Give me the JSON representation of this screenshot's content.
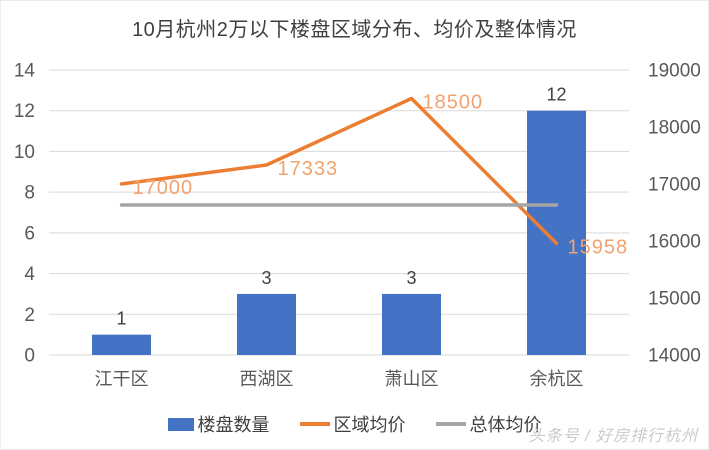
{
  "chart_data": {
    "type": "bar",
    "title": "10月杭州2万以下楼盘区域分布、均价及整体情况",
    "categories": [
      "江干区",
      "西湖区",
      "萧山区",
      "余杭区"
    ],
    "series": [
      {
        "key": "listing-count",
        "name": "楼盘数量",
        "type": "bar",
        "axis": "left",
        "values": [
          1,
          3,
          3,
          12
        ],
        "labels": [
          "1",
          "3",
          "3",
          "12"
        ],
        "color": "#4472C4"
      },
      {
        "key": "region-avg-price",
        "name": "区域均价",
        "type": "line",
        "axis": "right",
        "values": [
          17000,
          17333,
          18500,
          15958
        ],
        "labels": [
          "17000",
          "17333",
          "18500",
          "15958"
        ],
        "color": "#ED7D31",
        "label_color": "#F2A26E"
      },
      {
        "key": "overall-avg-price",
        "name": "总体均价",
        "type": "line",
        "axis": "right",
        "values": [
          16631,
          16631,
          16631,
          16631
        ],
        "labels": null,
        "color": "#A5A5A5"
      }
    ],
    "left_axis": {
      "min": 0,
      "max": 14,
      "ticks": [
        0,
        2,
        4,
        6,
        8,
        10,
        12,
        14
      ]
    },
    "right_axis": {
      "min": 14000,
      "max": 19000,
      "ticks": [
        14000,
        15000,
        16000,
        17000,
        18000,
        19000
      ]
    },
    "grid": true,
    "legend_position": "bottom"
  },
  "legend": {
    "items": [
      {
        "key": "listing-count",
        "label": "楼盘数量",
        "color": "#4472C4",
        "shape": "rect"
      },
      {
        "key": "region-avg-price",
        "label": "区域均价",
        "color": "#ED7D31",
        "shape": "line"
      },
      {
        "key": "overall-avg-price",
        "label": "总体均价",
        "color": "#A5A5A5",
        "shape": "line"
      }
    ]
  },
  "watermark": {
    "text": "头条号 / 好房排行杭州"
  },
  "colors": {
    "background": "#FFFFFF",
    "grid": "#D9D9D9",
    "axis_text": "#595959",
    "bar_label": "#404040",
    "title": "#3F3F3F",
    "line_label": "#F2A26E",
    "watermark": "#CBCBCB"
  }
}
